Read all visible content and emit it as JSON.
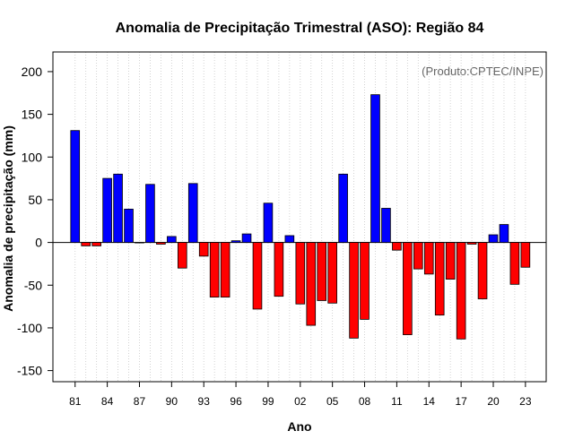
{
  "chart_data": {
    "type": "bar",
    "title": "Anomalia de Precipitação Trimestral (ASO): Região 84",
    "xlabel": "Ano",
    "ylabel": "Anomalia de precipitação (mm)",
    "credit": "(Produto:CPTEC/INPE)",
    "ylim": [
      -163,
      223
    ],
    "y_ticks": [
      -150,
      -100,
      -50,
      0,
      50,
      100,
      150,
      200
    ],
    "x_tick_labels": [
      "81",
      "84",
      "87",
      "90",
      "93",
      "96",
      "99",
      "02",
      "05",
      "08",
      "11",
      "14",
      "17",
      "20",
      "23"
    ],
    "grid": "vertical dotted",
    "categories": [
      "1981",
      "1982",
      "1983",
      "1984",
      "1985",
      "1986",
      "1987",
      "1988",
      "1989",
      "1990",
      "1991",
      "1992",
      "1993",
      "1994",
      "1995",
      "1996",
      "1997",
      "1998",
      "1999",
      "2000",
      "2001",
      "2002",
      "2003",
      "2004",
      "2005",
      "2006",
      "2007",
      "2008",
      "2009",
      "2010",
      "2011",
      "2012",
      "2013",
      "2014",
      "2015",
      "2016",
      "2017",
      "2018",
      "2019",
      "2020",
      "2021",
      "2022",
      "2023"
    ],
    "values": [
      131,
      -4,
      -4,
      75,
      80,
      39,
      0,
      68,
      -2,
      7,
      -30,
      69,
      -16,
      -64,
      -64,
      2,
      10,
      -78,
      46,
      -63,
      8,
      -72,
      -97,
      -68,
      -71,
      80,
      -112,
      -90,
      173,
      40,
      -9,
      -108,
      -31,
      -37,
      -85,
      -43,
      -113,
      -2,
      -66,
      9,
      21,
      -49,
      -29
    ],
    "colors": {
      "positive": "#0000ff",
      "negative": "#ff0000",
      "outline": "#000000"
    }
  }
}
